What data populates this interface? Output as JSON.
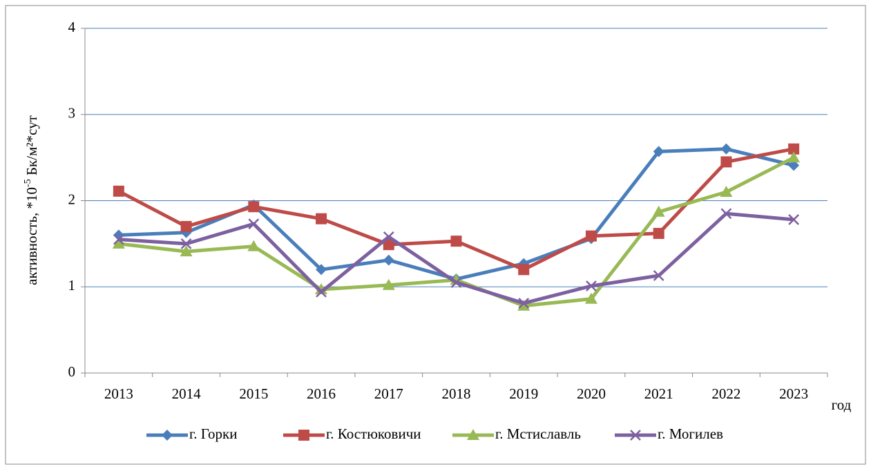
{
  "chart_data": {
    "type": "line",
    "y_label": {
      "text": "активность, *10",
      "superscript": "-5",
      "unit": " Бк/м²*сут"
    },
    "x_label": "год",
    "categories": [
      "2013",
      "2014",
      "2015",
      "2016",
      "2017",
      "2018",
      "2019",
      "2020",
      "2021",
      "2022",
      "2023"
    ],
    "series": [
      {
        "name": "г. Горки",
        "color": "#4a7ebb",
        "marker": "diamond",
        "values": [
          1.6,
          1.63,
          1.95,
          1.2,
          1.31,
          1.09,
          1.27,
          1.56,
          2.57,
          2.6,
          2.41
        ]
      },
      {
        "name": "г. Костюковичи",
        "color": "#be4b48",
        "marker": "square",
        "values": [
          2.11,
          1.7,
          1.93,
          1.79,
          1.49,
          1.53,
          1.2,
          1.59,
          1.62,
          2.45,
          2.6
        ]
      },
      {
        "name": "г. Мстиславль",
        "color": "#98b954",
        "marker": "triangle",
        "values": [
          1.5,
          1.41,
          1.47,
          0.97,
          1.02,
          1.08,
          0.78,
          0.86,
          1.87,
          2.1,
          2.5
        ]
      },
      {
        "name": "г. Могилев",
        "color": "#7d60a0",
        "marker": "x",
        "values": [
          1.55,
          1.5,
          1.73,
          0.94,
          1.58,
          1.05,
          0.81,
          1.01,
          1.13,
          1.85,
          1.78
        ]
      }
    ],
    "ylim": [
      0,
      4
    ],
    "yticks": [
      0,
      1,
      2,
      3,
      4
    ],
    "grid": true,
    "legend": "bottom"
  }
}
